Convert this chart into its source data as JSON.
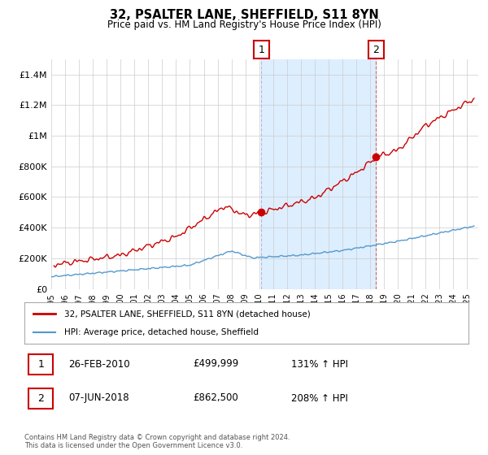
{
  "title": "32, PSALTER LANE, SHEFFIELD, S11 8YN",
  "subtitle": "Price paid vs. HM Land Registry's House Price Index (HPI)",
  "ylim": [
    0,
    1500000
  ],
  "xlim_start": 1995.0,
  "xlim_end": 2025.8,
  "yticks": [
    0,
    200000,
    400000,
    600000,
    800000,
    1000000,
    1200000,
    1400000
  ],
  "ytick_labels": [
    "£0",
    "£200K",
    "£400K",
    "£600K",
    "£800K",
    "£1M",
    "£1.2M",
    "£1.4M"
  ],
  "xticks": [
    1995,
    1996,
    1997,
    1998,
    1999,
    2000,
    2001,
    2002,
    2003,
    2004,
    2005,
    2006,
    2007,
    2008,
    2009,
    2010,
    2011,
    2012,
    2013,
    2014,
    2015,
    2016,
    2017,
    2018,
    2019,
    2020,
    2021,
    2022,
    2023,
    2024,
    2025
  ],
  "property_color": "#cc0000",
  "hpi_color": "#5599cc",
  "hpi_fill_color": "#ddeeff",
  "background_color": "#ffffff",
  "grid_color": "#cccccc",
  "transaction1_x": 2010.15,
  "transaction1_y": 499999,
  "transaction2_x": 2018.43,
  "transaction2_y": 862500,
  "legend_line1": "32, PSALTER LANE, SHEFFIELD, S11 8YN (detached house)",
  "legend_line2": "HPI: Average price, detached house, Sheffield",
  "transaction1_date": "26-FEB-2010",
  "transaction1_price": "£499,999",
  "transaction1_hpi": "131% ↑ HPI",
  "transaction2_date": "07-JUN-2018",
  "transaction2_price": "£862,500",
  "transaction2_hpi": "208% ↑ HPI",
  "footer": "Contains HM Land Registry data © Crown copyright and database right 2024.\nThis data is licensed under the Open Government Licence v3.0."
}
